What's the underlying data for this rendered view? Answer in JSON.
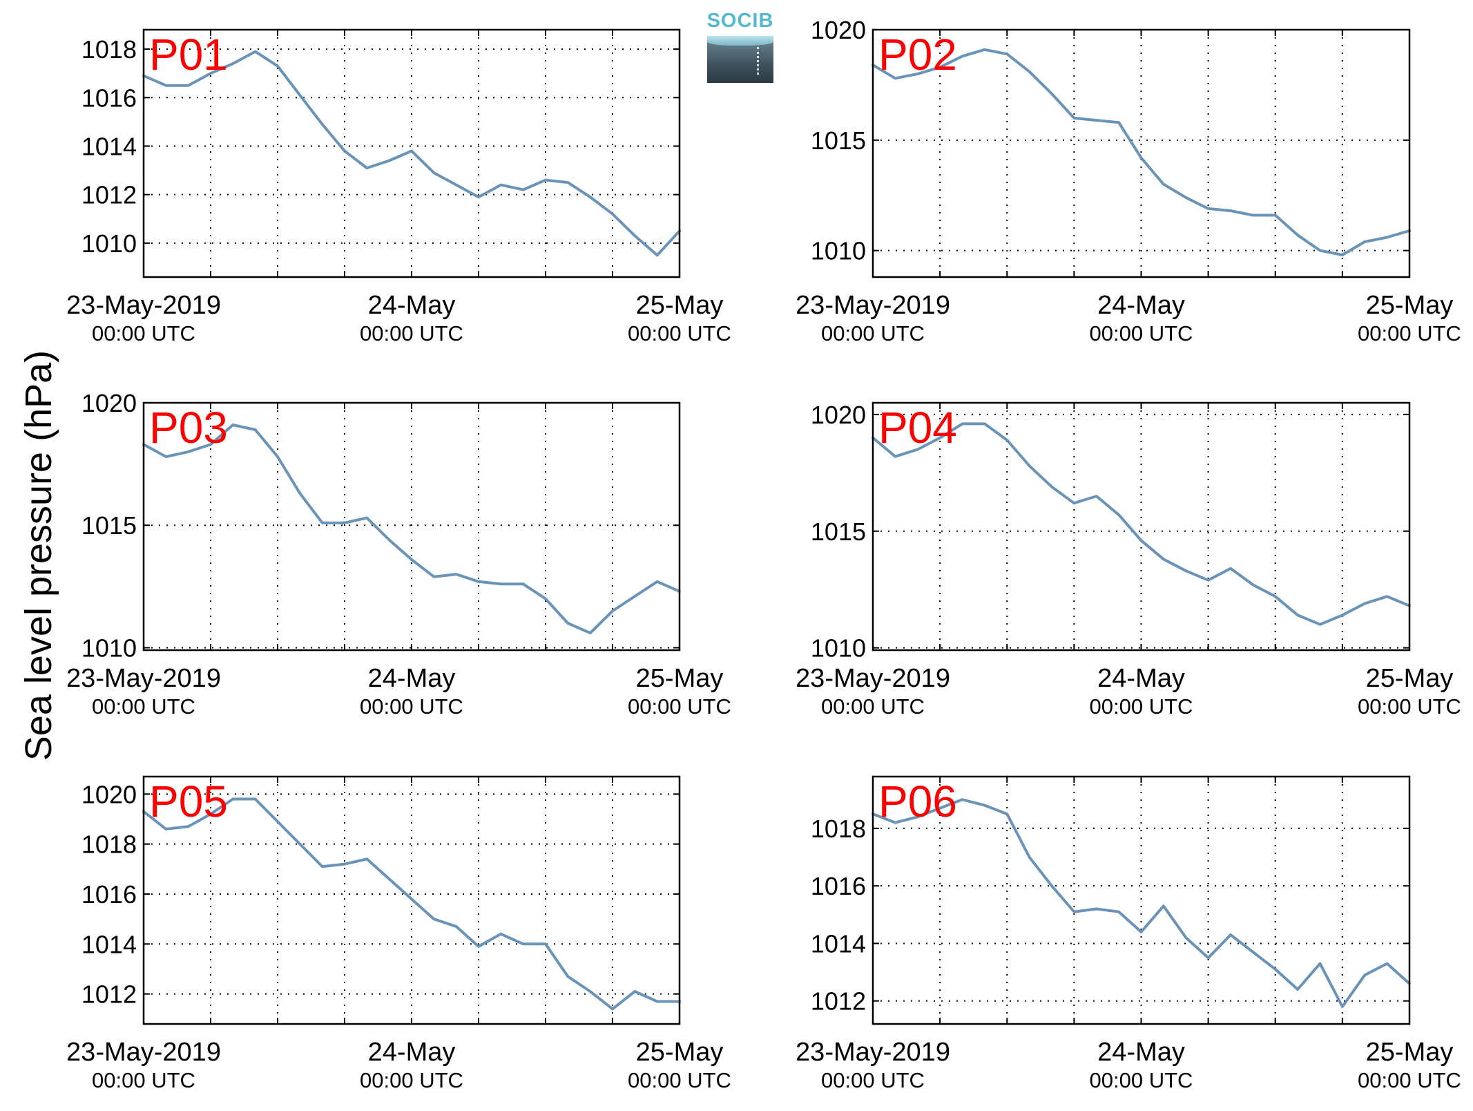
{
  "figure": {
    "ylabel": "Sea level pressure (hPa)",
    "logo": {
      "text": "SOCIB",
      "text_color": "#55b8cc"
    },
    "line_color": "#6a93b8",
    "label_color": "#ff0000"
  },
  "chart_data": [
    {
      "type": "line",
      "panel": "P01",
      "xlabels": [
        [
          "23-May-2019",
          "00:00 UTC"
        ],
        [
          "24-May",
          "00:00 UTC"
        ],
        [
          "25-May",
          "00:00 UTC"
        ]
      ],
      "x_hours": [
        0,
        2,
        4,
        6,
        8,
        10,
        12,
        14,
        16,
        18,
        20,
        22,
        24,
        26,
        28,
        30,
        32,
        34,
        36,
        38,
        40,
        42,
        44,
        46,
        48
      ],
      "y": [
        1016.9,
        1016.5,
        1016.5,
        1017.0,
        1017.4,
        1017.9,
        1017.3,
        1016.1,
        1014.9,
        1013.8,
        1013.1,
        1013.4,
        1013.8,
        1012.9,
        1012.4,
        1011.9,
        1012.4,
        1012.2,
        1012.6,
        1012.5,
        1011.9,
        1011.2,
        1010.3,
        1009.5,
        1010.5
      ],
      "yticks": [
        1010,
        1012,
        1014,
        1016,
        1018
      ],
      "ylim": [
        1008.6,
        1018.8
      ],
      "xlim": [
        0,
        48
      ]
    },
    {
      "type": "line",
      "panel": "P02",
      "xlabels": [
        [
          "23-May-2019",
          "00:00 UTC"
        ],
        [
          "24-May",
          "00:00 UTC"
        ],
        [
          "25-May",
          "00:00 UTC"
        ]
      ],
      "x_hours": [
        0,
        2,
        4,
        6,
        8,
        10,
        12,
        14,
        16,
        18,
        20,
        22,
        24,
        26,
        28,
        30,
        32,
        34,
        36,
        38,
        40,
        42,
        44,
        46,
        48
      ],
      "y": [
        1018.4,
        1017.8,
        1018.0,
        1018.3,
        1018.8,
        1019.1,
        1018.9,
        1018.1,
        1017.1,
        1016.0,
        1015.9,
        1015.8,
        1014.2,
        1013.0,
        1012.4,
        1011.9,
        1011.8,
        1011.6,
        1011.6,
        1010.7,
        1010.0,
        1009.8,
        1010.4,
        1010.6,
        1010.9
      ],
      "yticks": [
        1010,
        1015,
        1020
      ],
      "ylim": [
        1008.8,
        1020.0
      ],
      "xlim": [
        0,
        48
      ]
    },
    {
      "type": "line",
      "panel": "P03",
      "xlabels": [
        [
          "23-May-2019",
          "00:00 UTC"
        ],
        [
          "24-May",
          "00:00 UTC"
        ],
        [
          "25-May",
          "00:00 UTC"
        ]
      ],
      "x_hours": [
        0,
        2,
        4,
        6,
        8,
        10,
        12,
        14,
        16,
        18,
        20,
        22,
        24,
        26,
        28,
        30,
        32,
        34,
        36,
        38,
        40,
        42,
        44,
        46,
        48
      ],
      "y": [
        1018.3,
        1017.8,
        1018.0,
        1018.3,
        1019.1,
        1018.9,
        1017.8,
        1016.3,
        1015.1,
        1015.1,
        1015.3,
        1014.4,
        1013.6,
        1012.9,
        1013.0,
        1012.7,
        1012.6,
        1012.6,
        1012.0,
        1011.0,
        1010.6,
        1011.5,
        1012.1,
        1012.7,
        1012.3
      ],
      "yticks": [
        1010,
        1015,
        1020
      ],
      "ylim": [
        1009.9,
        1020.0
      ],
      "xlim": [
        0,
        48
      ]
    },
    {
      "type": "line",
      "panel": "P04",
      "xlabels": [
        [
          "23-May-2019",
          "00:00 UTC"
        ],
        [
          "24-May",
          "00:00 UTC"
        ],
        [
          "25-May",
          "00:00 UTC"
        ]
      ],
      "x_hours": [
        0,
        2,
        4,
        6,
        8,
        10,
        12,
        14,
        16,
        18,
        20,
        22,
        24,
        26,
        28,
        30,
        32,
        34,
        36,
        38,
        40,
        42,
        44,
        46,
        48
      ],
      "y": [
        1019.0,
        1018.2,
        1018.5,
        1019.0,
        1019.6,
        1019.6,
        1018.9,
        1017.8,
        1016.9,
        1016.2,
        1016.5,
        1015.7,
        1014.6,
        1013.8,
        1013.3,
        1012.9,
        1013.4,
        1012.7,
        1012.2,
        1011.4,
        1011.0,
        1011.4,
        1011.9,
        1012.2,
        1011.8
      ],
      "yticks": [
        1010,
        1015,
        1020
      ],
      "ylim": [
        1009.9,
        1020.5
      ],
      "xlim": [
        0,
        48
      ]
    },
    {
      "type": "line",
      "panel": "P05",
      "xlabels": [
        [
          "23-May-2019",
          "00:00 UTC"
        ],
        [
          "24-May",
          "00:00 UTC"
        ],
        [
          "25-May",
          "00:00 UTC"
        ]
      ],
      "x_hours": [
        0,
        2,
        4,
        6,
        8,
        10,
        12,
        14,
        16,
        18,
        20,
        22,
        24,
        26,
        28,
        30,
        32,
        34,
        36,
        38,
        40,
        42,
        44,
        46,
        48
      ],
      "y": [
        1019.3,
        1018.6,
        1018.7,
        1019.2,
        1019.8,
        1019.8,
        1018.9,
        1018.0,
        1017.1,
        1017.2,
        1017.4,
        1016.6,
        1015.8,
        1015.0,
        1014.7,
        1013.9,
        1014.4,
        1014.0,
        1014.0,
        1012.7,
        1012.1,
        1011.4,
        1012.1,
        1011.7,
        1011.7
      ],
      "yticks": [
        1012,
        1014,
        1016,
        1018,
        1020
      ],
      "ylim": [
        1010.8,
        1020.7
      ],
      "xlim": [
        0,
        48
      ]
    },
    {
      "type": "line",
      "panel": "P06",
      "xlabels": [
        [
          "23-May-2019",
          "00:00 UTC"
        ],
        [
          "24-May",
          "00:00 UTC"
        ],
        [
          "25-May",
          "00:00 UTC"
        ]
      ],
      "x_hours": [
        0,
        2,
        4,
        6,
        8,
        10,
        12,
        14,
        16,
        18,
        20,
        22,
        24,
        26,
        28,
        30,
        32,
        34,
        36,
        38,
        40,
        42,
        44,
        46,
        48
      ],
      "y": [
        1018.5,
        1018.2,
        1018.4,
        1018.7,
        1019.0,
        1018.8,
        1018.5,
        1017.0,
        1016.0,
        1015.1,
        1015.2,
        1015.1,
        1014.4,
        1015.3,
        1014.2,
        1013.5,
        1014.3,
        1013.7,
        1013.1,
        1012.4,
        1013.3,
        1011.8,
        1012.9,
        1013.3,
        1012.6
      ],
      "yticks": [
        1012,
        1014,
        1016,
        1018
      ],
      "ylim": [
        1011.2,
        1019.8
      ],
      "xlim": [
        0,
        48
      ]
    }
  ]
}
